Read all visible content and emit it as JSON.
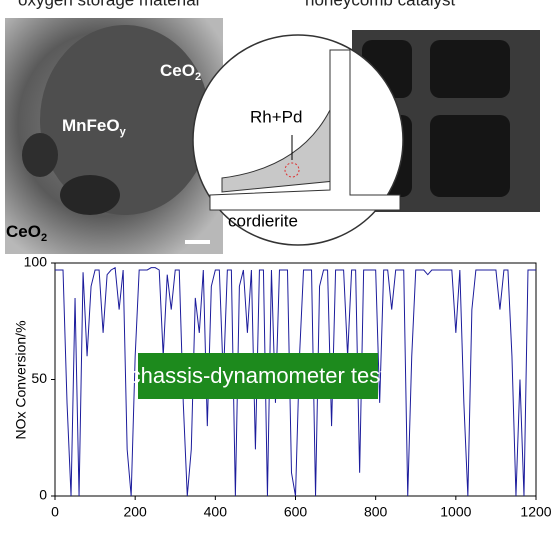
{
  "top_panels": {
    "left_caption": "oxygen storage material",
    "right_caption": "honeycomb catalyst",
    "tem_labels": [
      {
        "text": "CeO",
        "sub": "2"
      },
      {
        "text": "MnFeO",
        "sub": "y"
      },
      {
        "text": "CeO",
        "sub": "2"
      }
    ],
    "diagram_labels": {
      "metal": "Rh+Pd",
      "substrate": "cordierite"
    }
  },
  "chart_data": {
    "type": "line",
    "annotation": "chassis-dynamometer test",
    "y_label": "NOx Conversion/%",
    "xlim": [
      0,
      1200
    ],
    "xticks": [
      0,
      200,
      400,
      600,
      800,
      1000,
      1200
    ],
    "ylim": [
      0,
      100
    ],
    "yticks": [
      0,
      50,
      100
    ],
    "x": [
      0,
      10,
      20,
      30,
      40,
      50,
      60,
      70,
      80,
      90,
      100,
      110,
      120,
      130,
      140,
      150,
      160,
      170,
      180,
      190,
      200,
      210,
      220,
      230,
      240,
      250,
      260,
      270,
      280,
      290,
      300,
      310,
      320,
      330,
      340,
      350,
      360,
      370,
      380,
      390,
      400,
      410,
      420,
      430,
      440,
      450,
      460,
      470,
      480,
      490,
      500,
      510,
      520,
      530,
      540,
      550,
      560,
      570,
      580,
      590,
      600,
      610,
      620,
      630,
      640,
      650,
      660,
      670,
      680,
      690,
      700,
      710,
      720,
      730,
      740,
      750,
      760,
      770,
      780,
      790,
      800,
      810,
      820,
      830,
      840,
      850,
      860,
      870,
      880,
      890,
      900,
      910,
      920,
      930,
      940,
      950,
      960,
      970,
      980,
      990,
      1000,
      1010,
      1020,
      1030,
      1040,
      1050,
      1060,
      1070,
      1080,
      1090,
      1100,
      1110,
      1120,
      1130,
      1140,
      1150,
      1160,
      1170,
      1180,
      1190,
      1200
    ],
    "series": [
      {
        "color": "#1c1c9c",
        "values": [
          97,
          97,
          97,
          40,
          0,
          85,
          0,
          96,
          60,
          90,
          97,
          97,
          70,
          95,
          97,
          98,
          80,
          97,
          20,
          0,
          60,
          97,
          97,
          97,
          98,
          98,
          97,
          60,
          95,
          80,
          97,
          97,
          40,
          0,
          20,
          85,
          70,
          97,
          30,
          90,
          97,
          97,
          50,
          97,
          97,
          0,
          90,
          97,
          70,
          97,
          20,
          97,
          97,
          0,
          97,
          40,
          97,
          97,
          97,
          10,
          0,
          60,
          97,
          97,
          97,
          0,
          90,
          97,
          97,
          30,
          97,
          97,
          97,
          60,
          97,
          97,
          10,
          97,
          97,
          97,
          97,
          40,
          97,
          97,
          80,
          97,
          97,
          97,
          0,
          60,
          97,
          97,
          97,
          95,
          97,
          97,
          97,
          97,
          97,
          97,
          70,
          97,
          40,
          0,
          80,
          97,
          97,
          97,
          97,
          97,
          97,
          80,
          97,
          97,
          60,
          0,
          50,
          0,
          97,
          97,
          97
        ]
      }
    ]
  }
}
